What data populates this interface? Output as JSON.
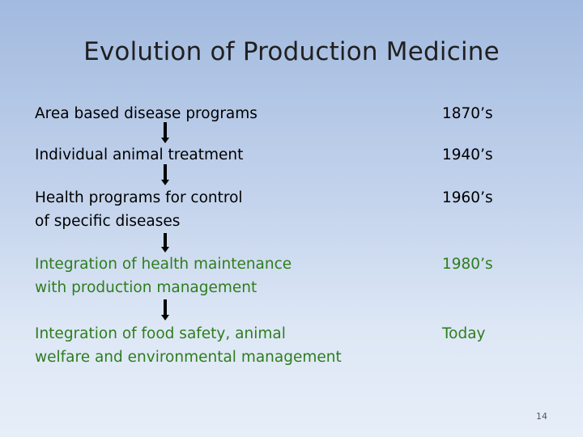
{
  "slide": {
    "title": "Evolution of Production Medicine",
    "page_number": "14"
  },
  "timeline": [
    {
      "label_line1": "Area based disease programs",
      "label_line2": "",
      "era": "1870’s",
      "color": "#000000"
    },
    {
      "label_line1": "Individual animal treatment",
      "label_line2": "",
      "era": "1940’s",
      "color": "#000000"
    },
    {
      "label_line1": "Health programs for control",
      "label_line2": "of specific diseases",
      "era": "1960’s",
      "color": "#000000"
    },
    {
      "label_line1": "Integration of health maintenance",
      "label_line2": "with production management",
      "era": "1980’s",
      "color": "#2e7d1e"
    },
    {
      "label_line1": "Integration of food safety, animal",
      "label_line2": "welfare and environmental management",
      "era": "Today",
      "color": "#2e7d1e"
    }
  ]
}
